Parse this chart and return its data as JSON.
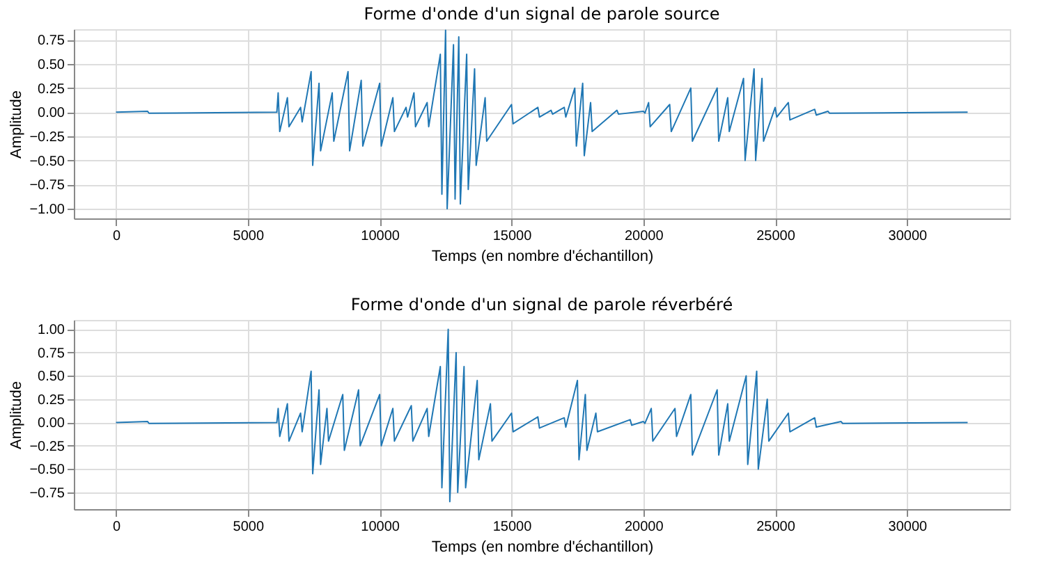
{
  "chart_data": [
    {
      "type": "line",
      "title": "Forme d'onde d'un signal de parole source",
      "xlabel": "Temps (en nombre d'échantillon)",
      "ylabel": "Amplitude",
      "grid": true,
      "line_style": "solid",
      "marker": "none",
      "xlim": [
        -1600,
        33900
      ],
      "ylim": [
        -1.1,
        0.86
      ],
      "xticks": [
        0,
        5000,
        10000,
        15000,
        20000,
        25000,
        30000
      ],
      "yticks": [
        {
          "value": -1.0,
          "label": "−1.00"
        },
        {
          "value": -0.75,
          "label": "−0.75"
        },
        {
          "value": -0.5,
          "label": "−0.50"
        },
        {
          "value": -0.25,
          "label": "−0.25"
        },
        {
          "value": 0,
          "label": "0.00"
        },
        {
          "value": 0.25,
          "label": "0.25"
        },
        {
          "value": 0.5,
          "label": "0.50"
        },
        {
          "value": 0.75,
          "label": "0.75"
        }
      ],
      "series": [
        {
          "color": "#1f77b4",
          "x": [
            0,
            1200,
            1250,
            6100,
            6150,
            6210,
            6500,
            6560,
            7000,
            7060,
            7400,
            7460,
            7700,
            7760,
            8200,
            8260,
            8800,
            8860,
            9300,
            9360,
            10000,
            10060,
            10500,
            10560,
            11000,
            11060,
            11300,
            11360,
            11800,
            11860,
            12300,
            12360,
            12500,
            12560,
            12800,
            12860,
            13000,
            13060,
            13300,
            13360,
            13600,
            13660,
            14000,
            14060,
            15000,
            15060,
            16000,
            16060,
            16500,
            16560,
            17000,
            17060,
            17400,
            17460,
            17700,
            17760,
            18000,
            18060,
            19000,
            19060,
            20000,
            20060,
            20200,
            20260,
            21000,
            21060,
            21800,
            21860,
            22800,
            22860,
            23200,
            23260,
            23800,
            23860,
            24200,
            24260,
            24500,
            24560,
            25000,
            25060,
            25500,
            25560,
            26500,
            26560,
            27000,
            27060,
            32300
          ],
          "values": [
            0,
            0.01,
            -0.01,
            0,
            0.2,
            -0.2,
            0.15,
            -0.15,
            0.05,
            -0.1,
            0.42,
            -0.55,
            0.3,
            -0.4,
            0.2,
            -0.3,
            0.42,
            -0.4,
            0.33,
            -0.35,
            0.3,
            -0.35,
            0.15,
            -0.2,
            0.05,
            -0.05,
            0.2,
            -0.15,
            0.1,
            -0.15,
            0.6,
            -0.85,
            0.85,
            -1.0,
            0.7,
            -0.9,
            0.78,
            -0.95,
            0.6,
            -0.8,
            0.45,
            -0.55,
            0.15,
            -0.3,
            0.08,
            -0.12,
            0.05,
            -0.05,
            0.02,
            -0.02,
            0.05,
            -0.05,
            0.25,
            -0.35,
            0.3,
            -0.45,
            0.1,
            -0.2,
            0.02,
            -0.02,
            0.01,
            -0.01,
            0.1,
            -0.15,
            0.08,
            -0.2,
            0.25,
            -0.3,
            0.25,
            -0.3,
            0.15,
            -0.2,
            0.35,
            -0.5,
            0.45,
            -0.5,
            0.35,
            -0.3,
            0.05,
            -0.05,
            0.1,
            -0.08,
            0.03,
            -0.03,
            0.01,
            -0.01,
            0
          ]
        }
      ]
    },
    {
      "type": "line",
      "title": "Forme d'onde d'un signal de parole réverbéré",
      "xlabel": "Temps (en nombre d'échantillon)",
      "ylabel": "Amplitude",
      "grid": true,
      "line_style": "solid",
      "marker": "none",
      "xlim": [
        -1600,
        33900
      ],
      "ylim": [
        -0.93,
        1.1
      ],
      "xticks": [
        0,
        5000,
        10000,
        15000,
        20000,
        25000,
        30000
      ],
      "yticks": [
        {
          "value": -0.75,
          "label": "−0.75"
        },
        {
          "value": -0.5,
          "label": "−0.50"
        },
        {
          "value": -0.25,
          "label": "−0.25"
        },
        {
          "value": 0,
          "label": "0.00"
        },
        {
          "value": 0.25,
          "label": "0.25"
        },
        {
          "value": 0.5,
          "label": "0.50"
        },
        {
          "value": 0.75,
          "label": "0.75"
        },
        {
          "value": 1.0,
          "label": "1.00"
        }
      ],
      "series": [
        {
          "color": "#1f77b4",
          "x": [
            0,
            1200,
            1250,
            6100,
            6150,
            6210,
            6500,
            6560,
            7000,
            7060,
            7400,
            7460,
            7700,
            7760,
            8000,
            8060,
            8600,
            8660,
            9200,
            9260,
            10000,
            10060,
            10500,
            10560,
            11200,
            11260,
            11800,
            11860,
            12300,
            12360,
            12600,
            12660,
            12900,
            12960,
            13200,
            13260,
            13700,
            13760,
            14200,
            14260,
            15000,
            15060,
            16000,
            16060,
            17000,
            17060,
            17500,
            17560,
            17800,
            17860,
            18200,
            18260,
            19500,
            19560,
            20000,
            20060,
            20300,
            20360,
            21200,
            21260,
            21800,
            21860,
            22800,
            22860,
            23200,
            23260,
            23900,
            23960,
            24300,
            24360,
            24700,
            24760,
            25500,
            25560,
            26500,
            26560,
            27500,
            27560,
            32300
          ],
          "values": [
            0,
            0.01,
            -0.01,
            0,
            0.15,
            -0.15,
            0.2,
            -0.2,
            0.1,
            -0.1,
            0.55,
            -0.55,
            0.35,
            -0.45,
            0.15,
            -0.2,
            0.3,
            -0.3,
            0.35,
            -0.25,
            0.3,
            -0.25,
            0.15,
            -0.2,
            0.18,
            -0.2,
            0.15,
            -0.15,
            0.6,
            -0.7,
            1.0,
            -0.85,
            0.75,
            -0.75,
            0.6,
            -0.7,
            0.45,
            -0.4,
            0.2,
            -0.2,
            0.1,
            -0.1,
            0.06,
            -0.06,
            0.05,
            -0.05,
            0.45,
            -0.4,
            0.3,
            -0.3,
            0.1,
            -0.1,
            0.03,
            -0.03,
            0.01,
            -0.01,
            0.15,
            -0.2,
            0.15,
            -0.15,
            0.3,
            -0.35,
            0.35,
            -0.35,
            0.2,
            -0.2,
            0.5,
            -0.45,
            0.55,
            -0.5,
            0.25,
            -0.2,
            0.1,
            -0.1,
            0.05,
            -0.05,
            0.01,
            -0.01,
            0
          ]
        }
      ]
    }
  ]
}
